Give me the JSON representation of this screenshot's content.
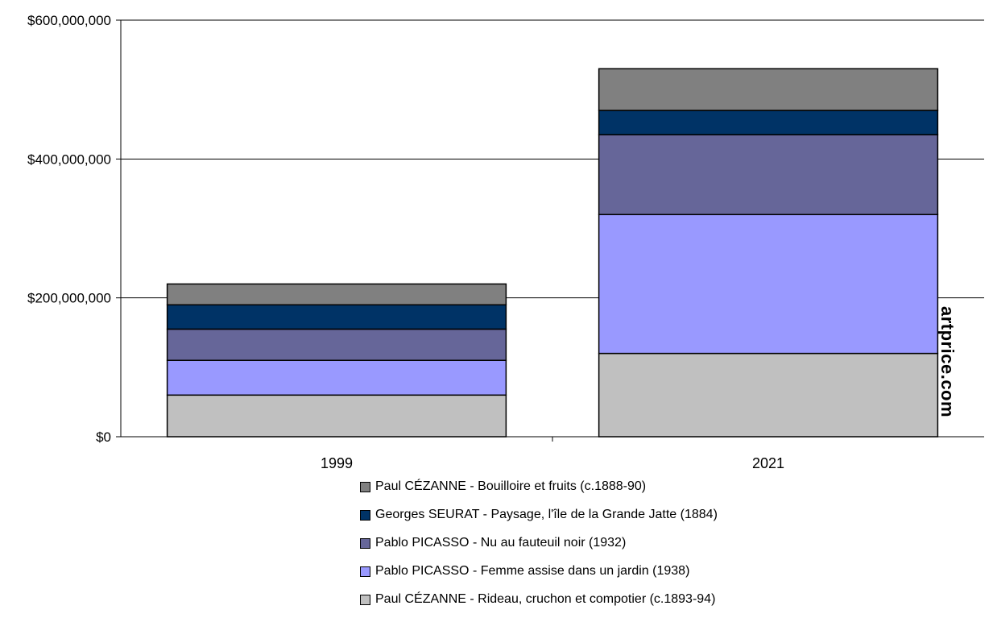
{
  "chart_data": {
    "type": "bar",
    "stacked": true,
    "categories": [
      "1999",
      "2021"
    ],
    "y_ticks": [
      "$0",
      "$200,000,000",
      "$400,000,000",
      "$600,000,000"
    ],
    "ylim": [
      0,
      600000000
    ],
    "grid": true,
    "legend_position": "bottom",
    "series": [
      {
        "name": "Paul CÉZANNE - Rideau, cruchon et compotier (c.1893-94)",
        "color": "#c0c0c0",
        "values": [
          60000000,
          120000000
        ]
      },
      {
        "name": "Pablo PICASSO - Femme assise dans un jardin (1938)",
        "color": "#9999ff",
        "values": [
          50000000,
          200000000
        ]
      },
      {
        "name": "Pablo PICASSO - Nu au fauteuil noir (1932)",
        "color": "#666699",
        "values": [
          45000000,
          115000000
        ]
      },
      {
        "name": "Georges SEURAT - Paysage, l'île de la Grande Jatte (1884)",
        "color": "#003366",
        "values": [
          35000000,
          35000000
        ]
      },
      {
        "name": "Paul CÉZANNE - Bouilloire et fruits (c.1888-90)",
        "color": "#808080",
        "values": [
          30000000,
          60000000
        ]
      }
    ]
  },
  "watermark": {
    "text": "artprice.com"
  }
}
